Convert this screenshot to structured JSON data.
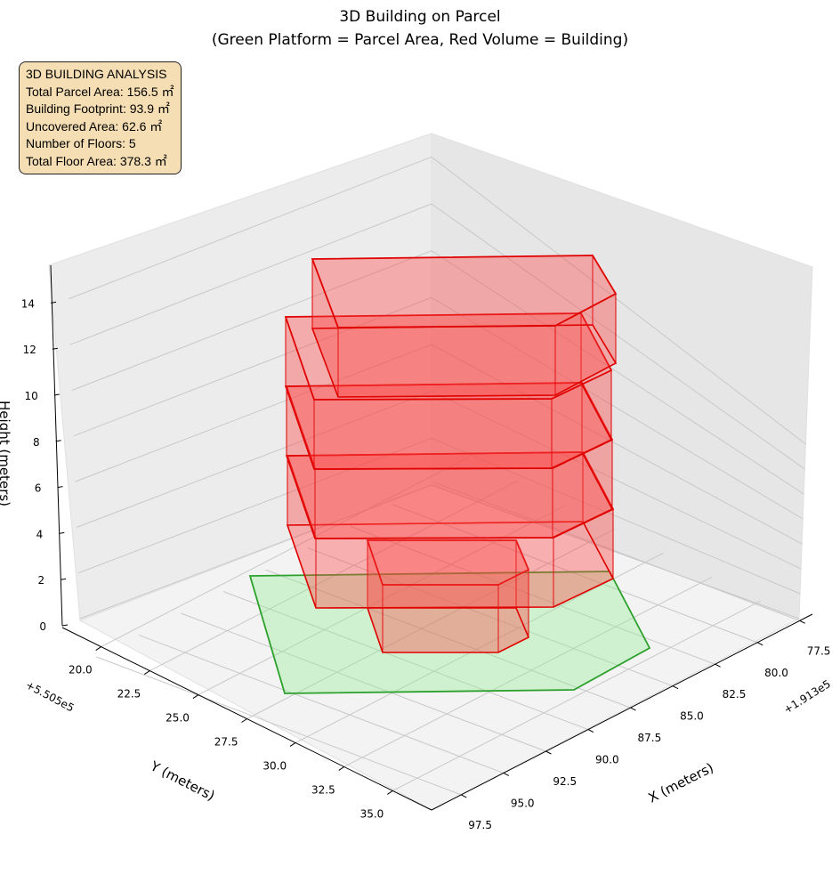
{
  "chart_data": {
    "type": "3d-polygon",
    "title_line1": "3D Building on Parcel",
    "title_line2": "(Green Platform = Parcel Area, Red Volume = Building)",
    "xlabel": "X (meters)",
    "ylabel": "Y (meters)",
    "zlabel": "Height (meters)",
    "x_offset": "+1.913e5",
    "y_offset": "+5.505e5",
    "x_ticks": [
      "77.5",
      "80.0",
      "82.5",
      "85.0",
      "87.5",
      "90.0",
      "92.5",
      "95.0",
      "97.5"
    ],
    "y_ticks": [
      "20.0",
      "22.5",
      "25.0",
      "27.5",
      "30.0",
      "32.5",
      "35.0"
    ],
    "z_ticks": [
      "0",
      "2",
      "4",
      "6",
      "8",
      "10",
      "12",
      "14"
    ],
    "zlim": [
      0,
      15
    ],
    "colors": {
      "parcel_fill": "#90ee90",
      "parcel_edge": "#2ca02c",
      "building_fill": "#ff4040",
      "building_edge": "#e00000",
      "info_bg": "#f5deb3"
    },
    "floors": 5
  },
  "info": {
    "heading": "3D BUILDING ANALYSIS",
    "lines": [
      "Total Parcel Area: 156.5 ㎡",
      "Building Footprint: 93.9 ㎡",
      "Uncovered Area: 62.6 ㎡",
      "Number of Floors: 5",
      "Total Floor Area: 378.3 ㎡"
    ]
  }
}
